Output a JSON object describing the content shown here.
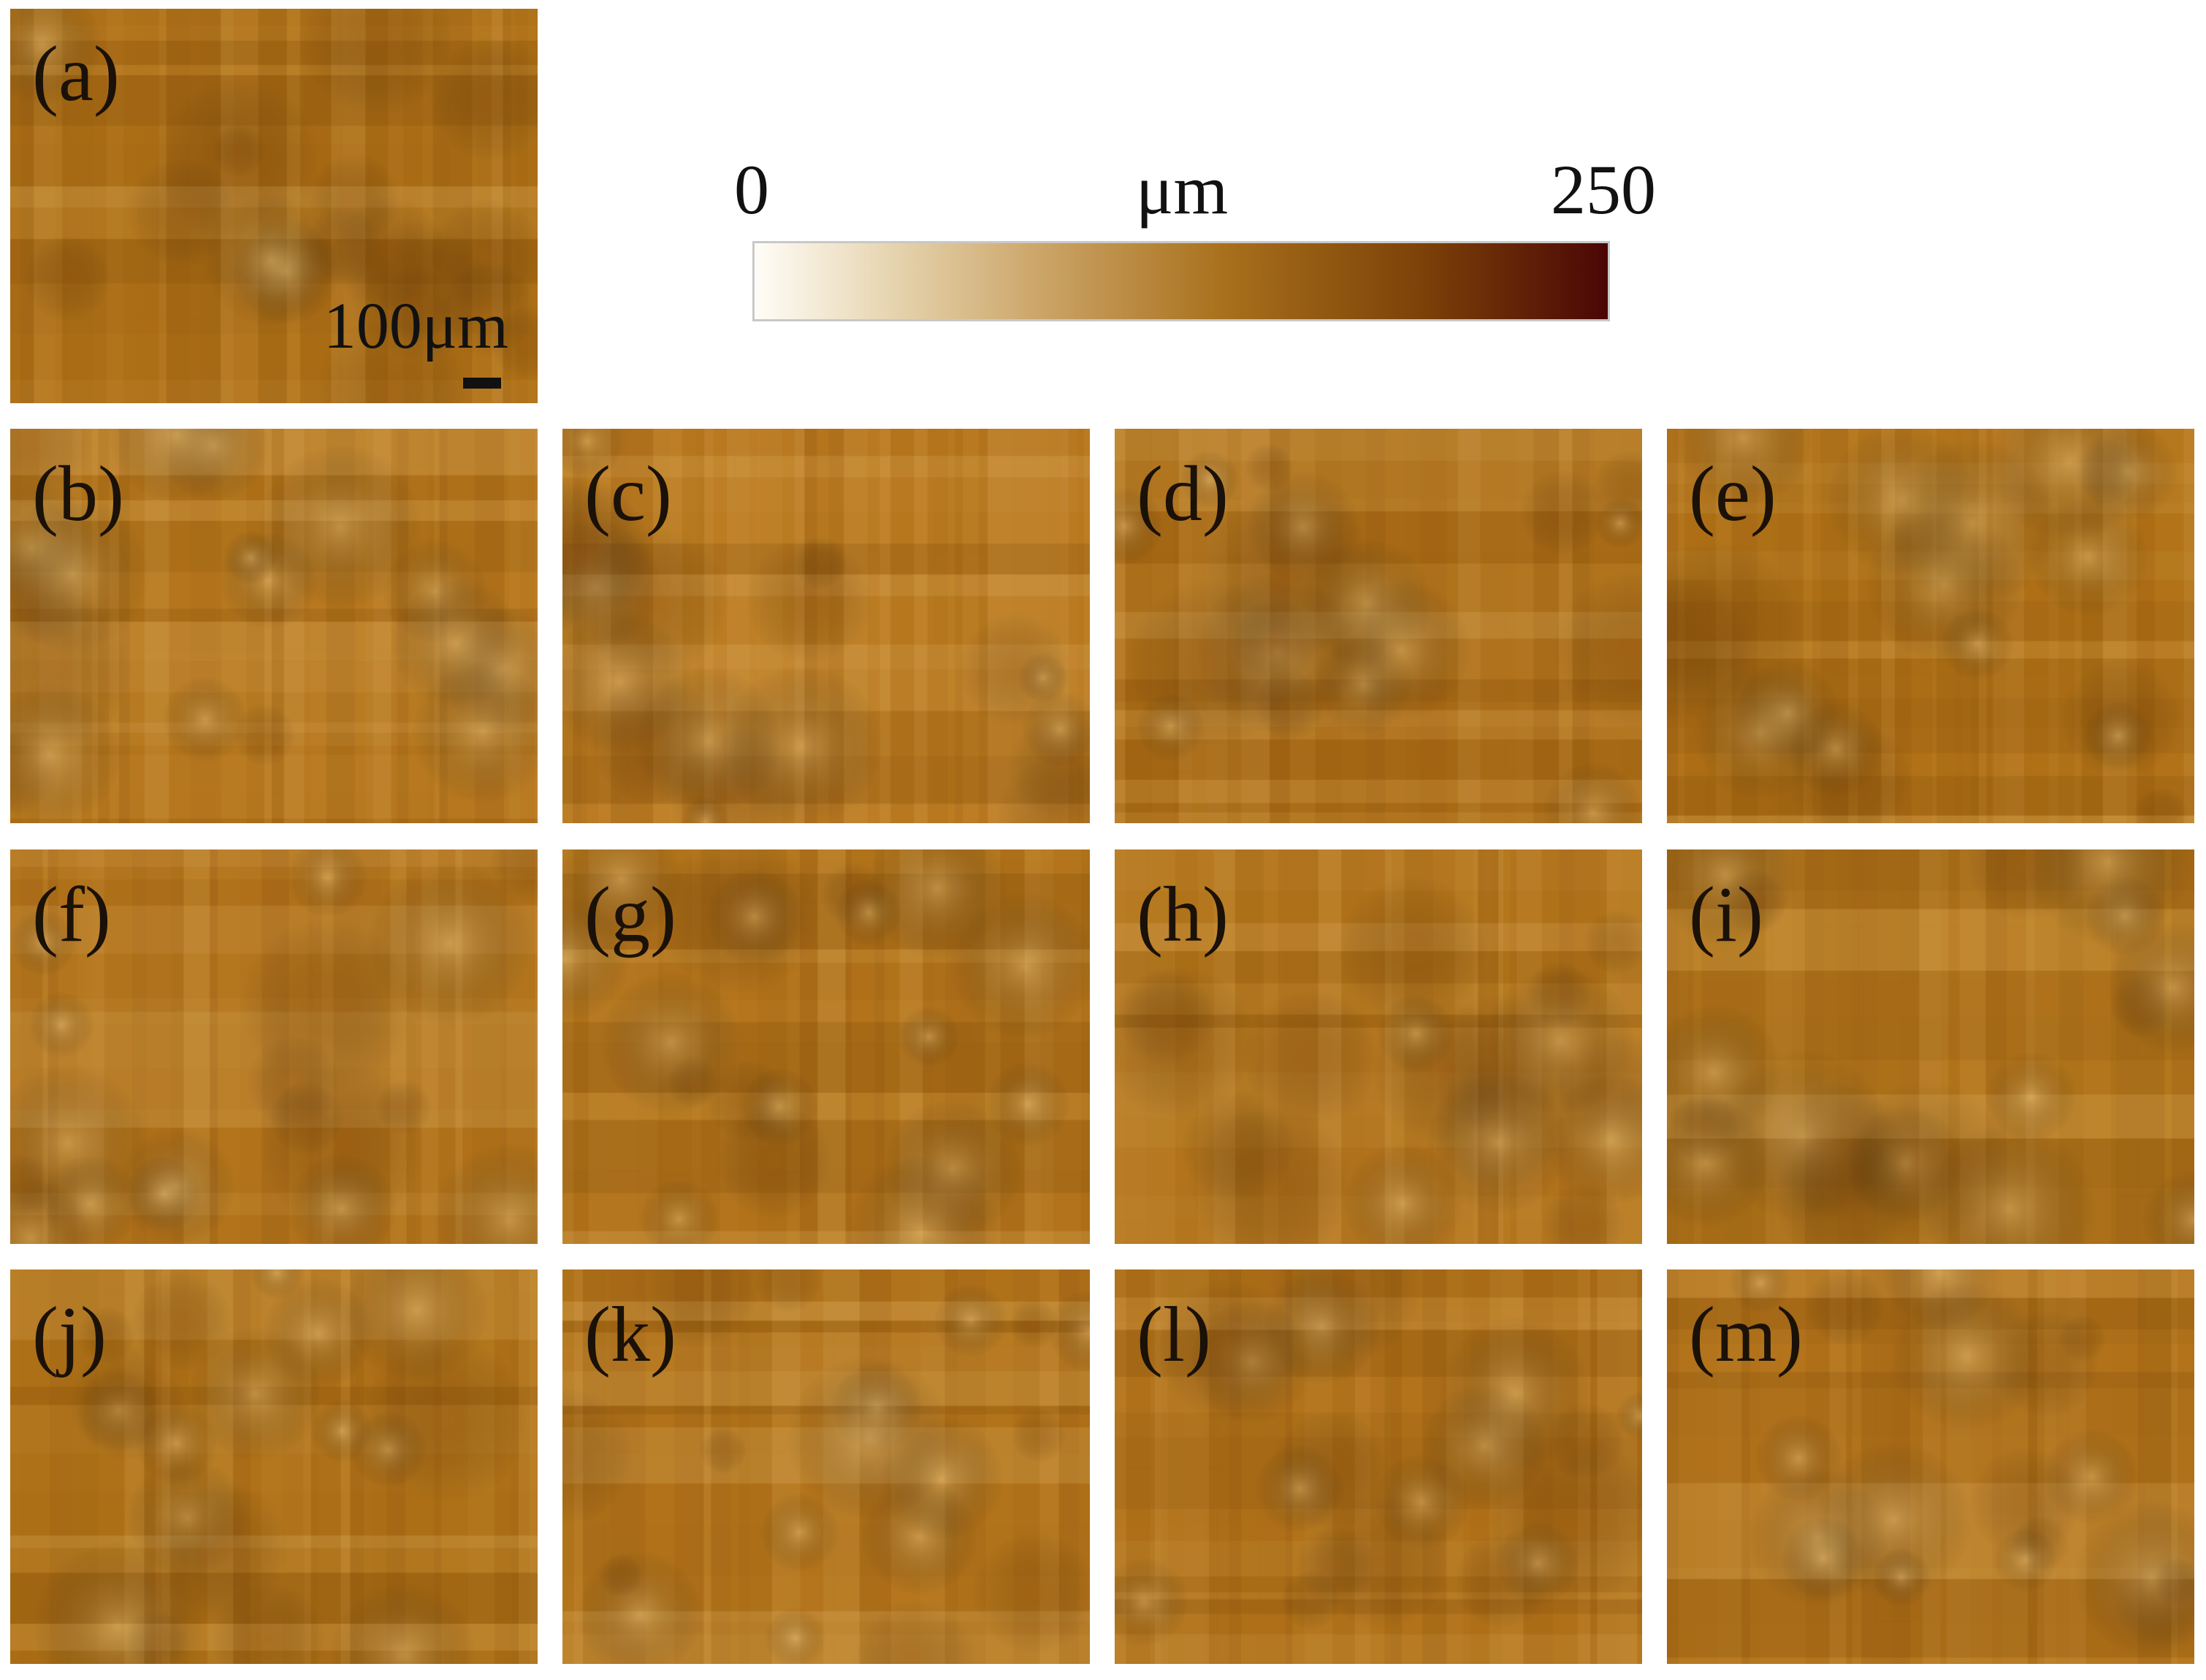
{
  "colorbar": {
    "min_label": "0",
    "unit_label": "μm",
    "max_label": "250",
    "gradient_colors": [
      "#fffdf8",
      "#e8d7b4",
      "#c9a162",
      "#a8701c",
      "#7c4208",
      "#4a0606"
    ]
  },
  "scale_bar": {
    "label": "100μm"
  },
  "panels": [
    {
      "label": "(a)",
      "base_color": "#b07218",
      "seed": 11
    },
    {
      "label": "(b)",
      "base_color": "#b5761c",
      "seed": 23
    },
    {
      "label": "(c)",
      "base_color": "#b9791f",
      "seed": 37
    },
    {
      "label": "(d)",
      "base_color": "#ae6f18",
      "seed": 41
    },
    {
      "label": "(e)",
      "base_color": "#b27318",
      "seed": 53
    },
    {
      "label": "(f)",
      "base_color": "#b4751c",
      "seed": 67
    },
    {
      "label": "(g)",
      "base_color": "#b3741b",
      "seed": 71
    },
    {
      "label": "(h)",
      "base_color": "#b3741b",
      "seed": 83
    },
    {
      "label": "(i)",
      "base_color": "#b6781d",
      "seed": 97
    },
    {
      "label": "(j)",
      "base_color": "#b07218",
      "seed": 101
    },
    {
      "label": "(k)",
      "base_color": "#b3741b",
      "seed": 113
    },
    {
      "label": "(l)",
      "base_color": "#b2731a",
      "seed": 127
    },
    {
      "label": "(m)",
      "base_color": "#b3741b",
      "seed": 131
    }
  ]
}
